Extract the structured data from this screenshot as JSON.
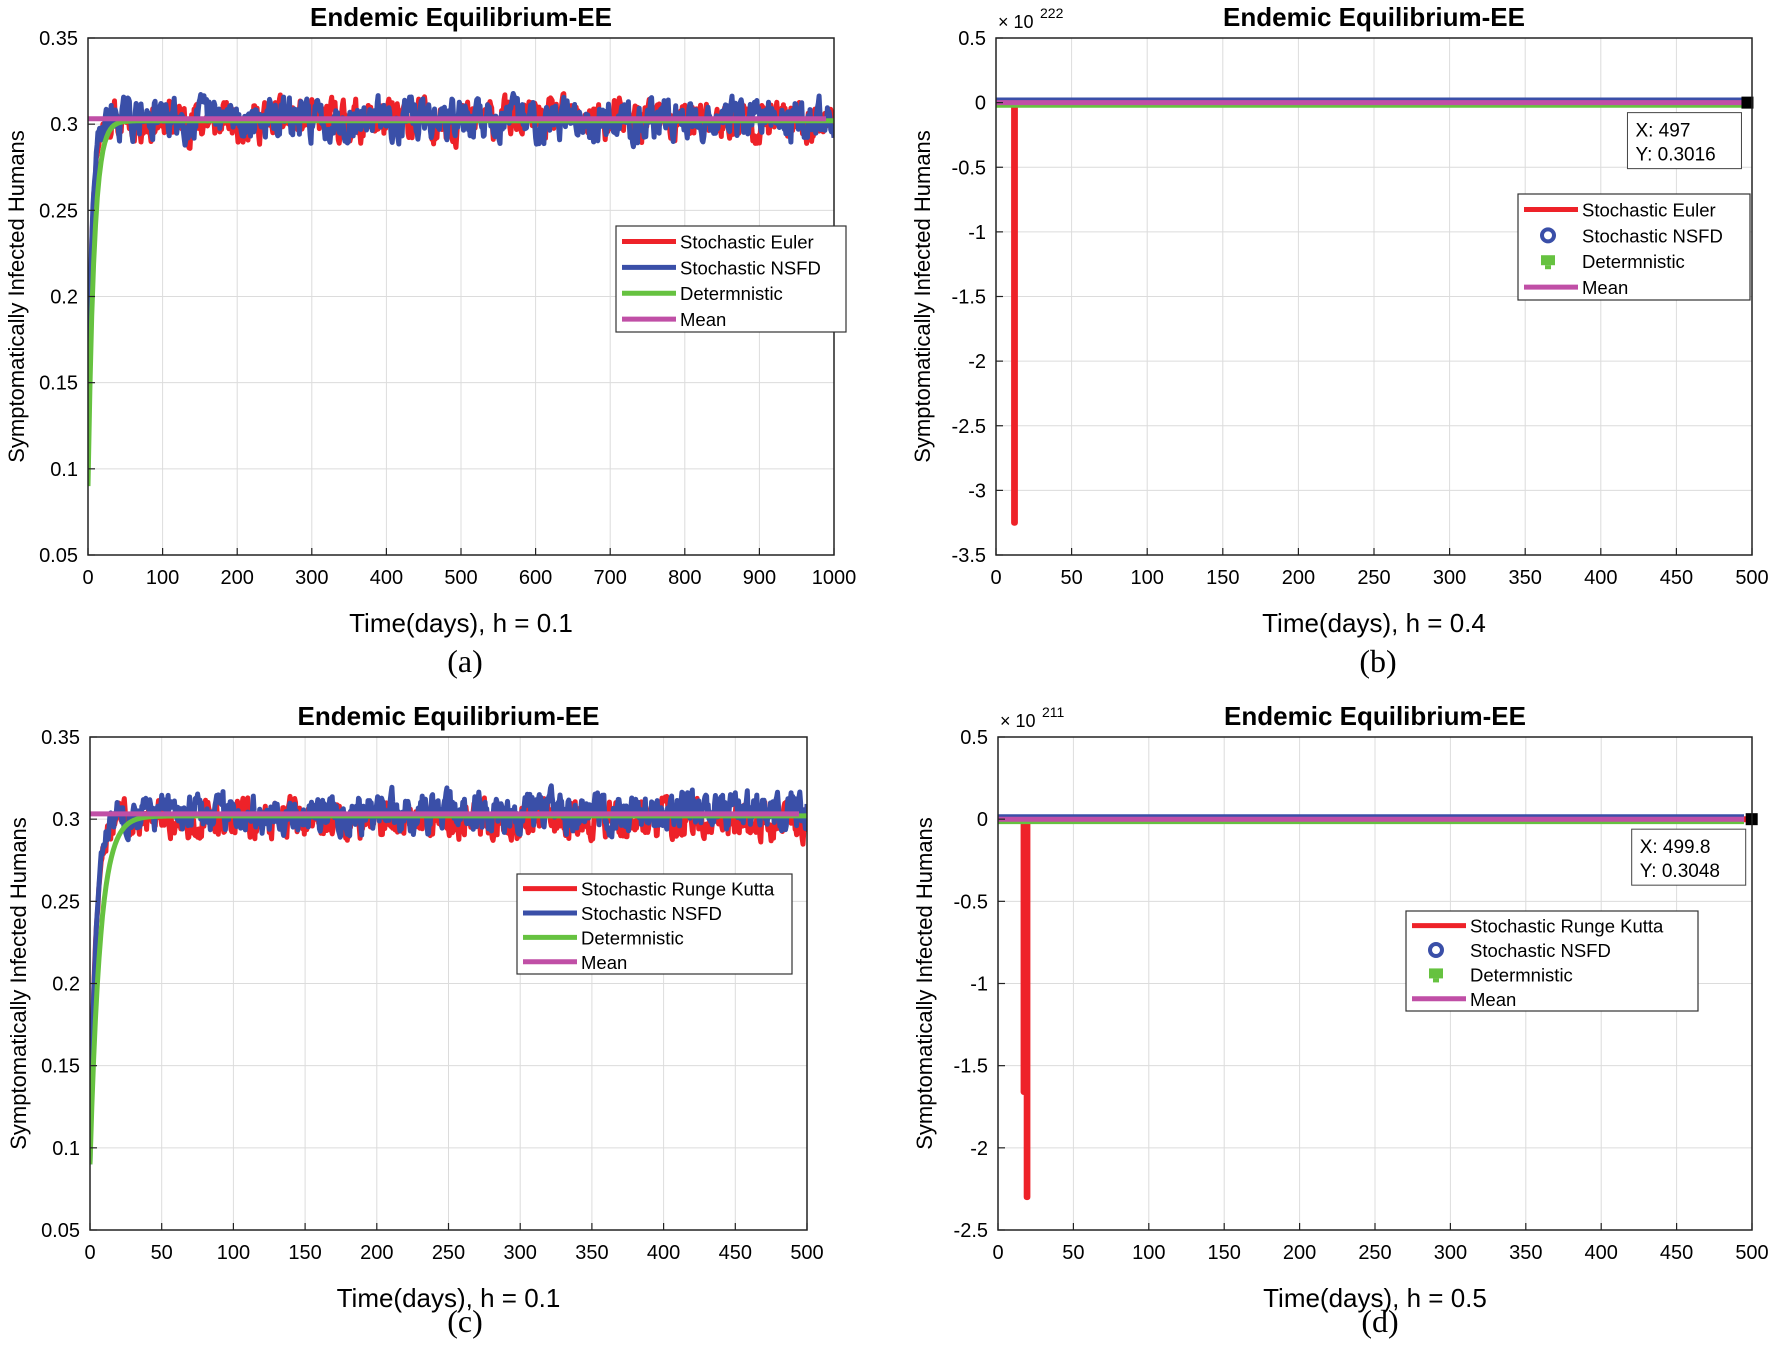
{
  "figure": {
    "captions": [
      "(a)",
      "(b)",
      "(c)",
      "(d)"
    ]
  },
  "colors": {
    "euler": "#ee2229",
    "nsfd": "#3a4fa8",
    "deterministic": "#66c240",
    "mean": "#c04fa6",
    "grid": "#dcdcdc",
    "axis": "#222222"
  },
  "chart_data": [
    {
      "panel": "a",
      "type": "line",
      "title": "Endemic Equilibrium-EE",
      "xlabel": "Time(days), h = 0.1",
      "ylabel": "Symptomatically Infected Humans",
      "xlim": [
        0,
        1000
      ],
      "ylim": [
        0.05,
        0.35
      ],
      "xticks": [
        0,
        100,
        200,
        300,
        400,
        500,
        600,
        700,
        800,
        900,
        1000
      ],
      "yticks": [
        0.05,
        0.1,
        0.15,
        0.2,
        0.25,
        0.3,
        0.35
      ],
      "exponent": "",
      "grid": true,
      "legend_position": "right",
      "series": [
        {
          "name": "Stochastic Euler",
          "role": "euler",
          "kind": "noisy",
          "start": 0.1,
          "level": 0.302,
          "amp": 0.009,
          "rise": 15,
          "seed": 11
        },
        {
          "name": "Stochastic NSFD",
          "role": "nsfd",
          "kind": "noisy",
          "start": 0.105,
          "level": 0.303,
          "amp": 0.009,
          "rise": 15,
          "seed": 29
        },
        {
          "name": "Determnistic",
          "role": "deterministic",
          "kind": "smooth",
          "start": 0.09,
          "level": 0.302,
          "rise": 8
        },
        {
          "name": "Mean",
          "role": "mean",
          "kind": "flat",
          "level": 0.3032
        }
      ]
    },
    {
      "panel": "b",
      "type": "line",
      "title": "Endemic Equilibrium-EE",
      "xlabel": "Time(days), h = 0.4",
      "ylabel": "Symptomatically Infected Humans",
      "xlim": [
        0,
        500
      ],
      "ylim": [
        -3.5,
        0.5
      ],
      "xticks": [
        0,
        50,
        100,
        150,
        200,
        250,
        300,
        350,
        400,
        450,
        500
      ],
      "yticks": [
        -3.5,
        -3,
        -2.5,
        -2,
        -1.5,
        -1,
        -0.5,
        0,
        0.5
      ],
      "exponent": "222",
      "grid": true,
      "legend_position": "right",
      "datatip": {
        "x_label": "X: 497",
        "y_label": "Y: 0.3016",
        "x": 497,
        "y": 0
      },
      "series": [
        {
          "name": "Stochastic Euler",
          "role": "euler",
          "kind": "spike",
          "x": [
            0,
            12,
            12,
            12.5,
            12.5,
            500
          ],
          "y": [
            0,
            0,
            -3.25,
            -3.25,
            0,
            0
          ]
        },
        {
          "name": "Stochastic NSFD",
          "role": "nsfd",
          "kind": "flat",
          "level": 0.02
        },
        {
          "name": "Determnistic",
          "role": "deterministic",
          "kind": "flat",
          "level": -0.02
        },
        {
          "name": "Mean",
          "role": "mean",
          "kind": "flat",
          "level": 0
        }
      ]
    },
    {
      "panel": "c",
      "type": "line",
      "title": "Endemic Equilibrium-EE",
      "xlabel": "Time(days), h = 0.1",
      "ylabel": "Symptomatically Infected Humans",
      "xlim": [
        0,
        500
      ],
      "ylim": [
        0.05,
        0.35
      ],
      "xticks": [
        0,
        50,
        100,
        150,
        200,
        250,
        300,
        350,
        400,
        450,
        500
      ],
      "yticks": [
        0.05,
        0.1,
        0.15,
        0.2,
        0.25,
        0.3,
        0.35
      ],
      "exponent": "",
      "grid": true,
      "legend_position": "right",
      "series": [
        {
          "name": "Stochastic Runge Kutta",
          "role": "euler",
          "kind": "noisy",
          "start": 0.1,
          "level": 0.3,
          "amp": 0.009,
          "rise": 12,
          "seed": 47
        },
        {
          "name": "Stochastic NSFD",
          "role": "nsfd",
          "kind": "noisy",
          "start": 0.09,
          "level": 0.304,
          "amp": 0.009,
          "rise": 12,
          "seed": 83
        },
        {
          "name": "Determnistic",
          "role": "deterministic",
          "kind": "smooth",
          "start": 0.09,
          "level": 0.302,
          "rise": 7
        },
        {
          "name": "Mean",
          "role": "mean",
          "kind": "flat",
          "level": 0.3032
        }
      ]
    },
    {
      "panel": "d",
      "type": "line",
      "title": "Endemic Equilibrium-EE",
      "xlabel": "Time(days), h = 0.5",
      "ylabel": "Symptomatically Infected Humans",
      "xlim": [
        0,
        500
      ],
      "ylim": [
        -2.5,
        0.5
      ],
      "xticks": [
        0,
        50,
        100,
        150,
        200,
        250,
        300,
        350,
        400,
        450,
        500
      ],
      "yticks": [
        -2.5,
        -2,
        -1.5,
        -1,
        -0.5,
        0,
        0.5
      ],
      "exponent": "211",
      "grid": true,
      "legend_position": "right",
      "datatip": {
        "x_label": "X: 499.8",
        "y_label": "Y: 0.3048",
        "x": 499.8,
        "y": 0
      },
      "series": [
        {
          "name": "Stochastic Runge Kutta",
          "role": "euler",
          "kind": "spike",
          "x": [
            0,
            17,
            17,
            19,
            19,
            19.5,
            19.5,
            500
          ],
          "y": [
            0,
            0,
            -1.66,
            -1.66,
            -2.3,
            -2.3,
            0,
            0
          ]
        },
        {
          "name": "Stochastic NSFD",
          "role": "nsfd",
          "kind": "flat",
          "level": 0.015
        },
        {
          "name": "Determnistic",
          "role": "deterministic",
          "kind": "flat",
          "level": -0.015
        },
        {
          "name": "Mean",
          "role": "mean",
          "kind": "flat",
          "level": 0
        }
      ]
    }
  ]
}
